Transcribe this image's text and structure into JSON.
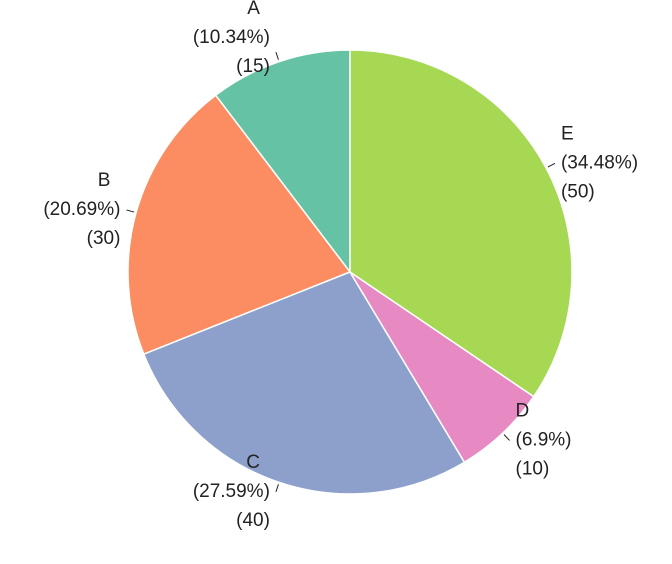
{
  "chart_data": {
    "type": "pie",
    "categories": [
      "A",
      "B",
      "C",
      "D",
      "E"
    ],
    "values": [
      15,
      30,
      40,
      10,
      50
    ],
    "percent_labels": [
      "(10.34%)",
      "(20.69%)",
      "(27.59%)",
      "(6.9%)",
      "(34.48%)"
    ],
    "value_labels": [
      "(15)",
      "(30)",
      "(40)",
      "(10)",
      "(50)"
    ],
    "colors": [
      "#66c2a5",
      "#fc8d62",
      "#8da0cb",
      "#e78ac3",
      "#a6d854"
    ],
    "direction": "counterclockwise"
  }
}
